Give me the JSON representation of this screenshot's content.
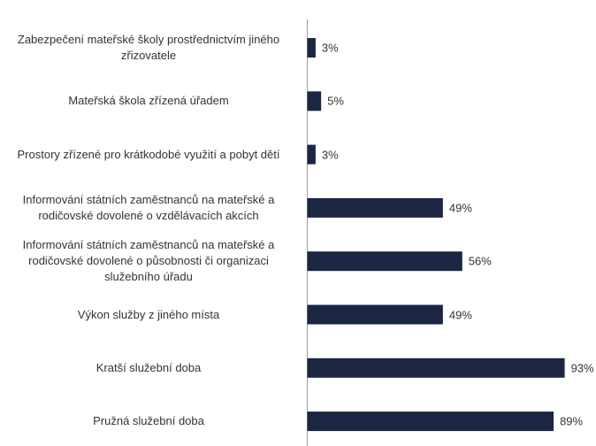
{
  "chart_data": {
    "type": "bar",
    "orientation": "horizontal",
    "categories": [
      "Zabezpečení mateřské školy prostřednictvím jiného zřizovatele",
      "Mateřská škola zřízená úřadem",
      "Prostory zřízené pro krátkodobé využití a pobyt dětí",
      "Informování státních zaměstnanců na mateřské a rodičovské dovolené o vzdělávacích akcích",
      "Informování státních zaměstnanců na mateřské a rodičovské dovolené o působnosti či organizaci služebního úřadu",
      "Výkon služby z jiného místa",
      "Kratší služební doba",
      "Pružná služební doba"
    ],
    "values": [
      3,
      5,
      3,
      49,
      56,
      49,
      93,
      89
    ],
    "value_labels": [
      "3%",
      "5%",
      "3%",
      "49%",
      "56%",
      "49%",
      "93%",
      "89%"
    ],
    "color": "#1b2642"
  }
}
